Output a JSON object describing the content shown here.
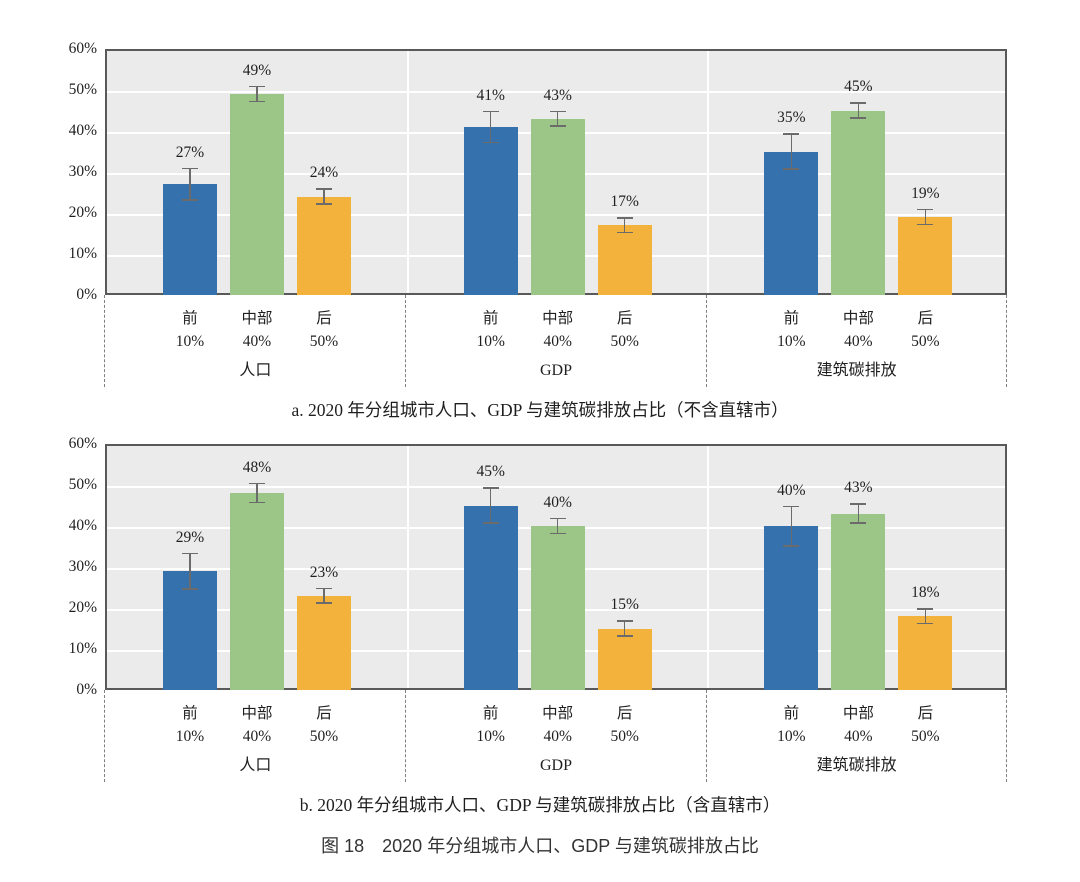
{
  "figure_caption": "图 18　2020 年分组城市人口、GDP 与建筑碳排放占比",
  "colors": {
    "series": [
      "#3572AD",
      "#9CC588",
      "#F3B23C"
    ],
    "plot_bg": "#EBEBEB",
    "grid": "#FFFFFF",
    "plot_border": "#595959",
    "error_bar": "#6B6B6B",
    "separator_dash": "#7F7F7F",
    "text": "#1F1F1F"
  },
  "chart_data": [
    {
      "type": "bar",
      "title": "a. 2020 年分组城市人口、GDP 与建筑碳排放占比（不含直辖市）",
      "ylim": [
        0,
        60
      ],
      "ytick_labels": [
        "0%",
        "10%",
        "20%",
        "30%",
        "40%",
        "50%",
        "60%"
      ],
      "grid": true,
      "legend": "none",
      "value_label_suffix": "%",
      "categories": [
        {
          "line1": "前",
          "line2": "10%"
        },
        {
          "line1": "中部",
          "line2": "40%"
        },
        {
          "line1": "后",
          "line2": "50%"
        }
      ],
      "groups": [
        {
          "label": "人口",
          "values": [
            27,
            49,
            24
          ],
          "errors": [
            4,
            2,
            2
          ]
        },
        {
          "label": "GDP",
          "values": [
            41,
            43,
            17
          ],
          "errors": [
            4,
            2,
            2
          ]
        },
        {
          "label": "建筑碳排放",
          "values": [
            35,
            45,
            19
          ],
          "errors": [
            4.5,
            2,
            2
          ]
        }
      ]
    },
    {
      "type": "bar",
      "title": "b. 2020 年分组城市人口、GDP 与建筑碳排放占比（含直辖市）",
      "ylim": [
        0,
        60
      ],
      "ytick_labels": [
        "0%",
        "10%",
        "20%",
        "30%",
        "40%",
        "50%",
        "60%"
      ],
      "grid": true,
      "legend": "none",
      "value_label_suffix": "%",
      "categories": [
        {
          "line1": "前",
          "line2": "10%"
        },
        {
          "line1": "中部",
          "line2": "40%"
        },
        {
          "line1": "后",
          "line2": "50%"
        }
      ],
      "groups": [
        {
          "label": "人口",
          "values": [
            29,
            48,
            23
          ],
          "errors": [
            4.5,
            2.5,
            2
          ]
        },
        {
          "label": "GDP",
          "values": [
            45,
            40,
            15
          ],
          "errors": [
            4.5,
            2,
            2
          ]
        },
        {
          "label": "建筑碳排放",
          "values": [
            40,
            43,
            18
          ],
          "errors": [
            5,
            2.5,
            2
          ]
        }
      ]
    }
  ]
}
